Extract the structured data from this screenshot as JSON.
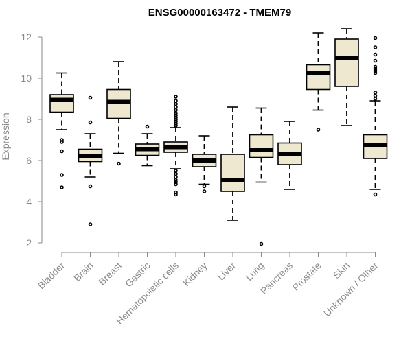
{
  "chart_data": {
    "type": "boxplot",
    "title": "ENSG00000163472 - TMEM79",
    "ylabel": "Expression",
    "xlabel": "",
    "ylim": [
      2,
      12.4
    ],
    "yticks": [
      2,
      4,
      6,
      8,
      10,
      12
    ],
    "grid": false,
    "categories": [
      "Bladder",
      "Brain",
      "Breast",
      "Gastric",
      "Hematopoietic cells",
      "Kidney",
      "Liver",
      "Lung",
      "Pancreas",
      "Prostate",
      "Skin",
      "Unknown / Other"
    ],
    "boxes": [
      {
        "whislo": 7.5,
        "q1": 8.35,
        "med": 8.95,
        "q3": 9.2,
        "whishi": 10.25,
        "fliers": [
          7.0,
          6.9,
          6.45,
          5.3,
          4.7
        ]
      },
      {
        "whislo": 5.2,
        "q1": 5.95,
        "med": 6.2,
        "q3": 6.55,
        "whishi": 7.3,
        "fliers": [
          9.05,
          7.85,
          4.75,
          2.9
        ]
      },
      {
        "whislo": 6.35,
        "q1": 8.05,
        "med": 8.85,
        "q3": 9.45,
        "whishi": 10.8,
        "fliers": [
          5.85
        ]
      },
      {
        "whislo": 5.75,
        "q1": 6.25,
        "med": 6.55,
        "q3": 6.8,
        "whishi": 7.3,
        "fliers": [
          7.65
        ]
      },
      {
        "whislo": 5.6,
        "q1": 6.4,
        "med": 6.65,
        "q3": 6.9,
        "whishi": 7.6,
        "fliers": [
          9.1,
          8.9,
          8.75,
          8.6,
          8.45,
          8.3,
          8.2,
          8.1,
          8.0,
          7.9,
          7.8,
          7.7,
          5.5,
          5.35,
          5.2,
          5.05,
          4.95,
          4.85,
          4.45,
          4.35
        ]
      },
      {
        "whislo": 4.85,
        "q1": 5.7,
        "med": 6.0,
        "q3": 6.3,
        "whishi": 7.2,
        "fliers": [
          4.75,
          4.5
        ]
      },
      {
        "whislo": 3.1,
        "q1": 4.5,
        "med": 5.05,
        "q3": 6.3,
        "whishi": 8.6,
        "fliers": []
      },
      {
        "whislo": 4.95,
        "q1": 6.15,
        "med": 6.5,
        "q3": 7.25,
        "whishi": 8.55,
        "fliers": [
          1.95
        ]
      },
      {
        "whislo": 4.6,
        "q1": 5.8,
        "med": 6.3,
        "q3": 6.85,
        "whishi": 7.9,
        "fliers": []
      },
      {
        "whislo": 8.45,
        "q1": 9.45,
        "med": 10.25,
        "q3": 10.65,
        "whishi": 12.2,
        "fliers": [
          7.5
        ]
      },
      {
        "whislo": 7.7,
        "q1": 9.6,
        "med": 11.0,
        "q3": 11.9,
        "whishi": 12.4,
        "fliers": []
      },
      {
        "whislo": 4.6,
        "q1": 6.1,
        "med": 6.75,
        "q3": 7.25,
        "whishi": 8.9,
        "fliers": [
          11.95,
          11.5,
          11.15,
          10.85,
          10.55,
          10.45,
          10.35,
          10.25,
          9.3,
          9.15,
          9.0,
          4.35
        ]
      }
    ],
    "colors": {
      "box_fill": "#efe8d0",
      "stroke": "#000000",
      "axis_text": "#8a8a8a"
    }
  }
}
